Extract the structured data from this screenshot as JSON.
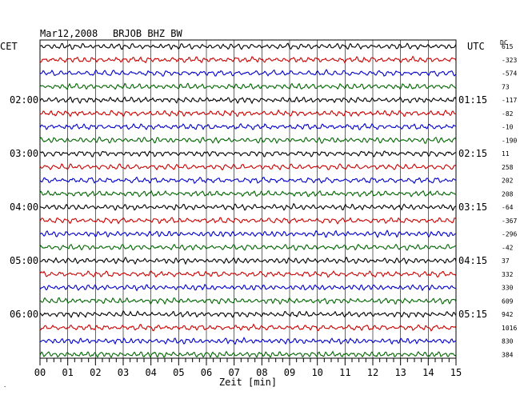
{
  "header": {
    "date": "Mar12,2008",
    "station": "BRJOB BHZ BW",
    "left_tz": "CET",
    "right_tz": "UTC",
    "dc_label": "DC"
  },
  "colors": {
    "cycle": [
      "#000000",
      "#cc0000",
      "#0000cc",
      "#006600"
    ],
    "grid": "#000000"
  },
  "chart_data": {
    "type": "line",
    "title": "Mar12,2008   BRJOB BHZ BW",
    "xlabel": "Zeit [min]",
    "xlim": [
      0,
      15
    ],
    "x_ticks": [
      "00",
      "01",
      "02",
      "03",
      "04",
      "05",
      "06",
      "07",
      "08",
      "09",
      "10",
      "11",
      "12",
      "13",
      "14",
      "15"
    ],
    "grid": true,
    "minutes_per_trace": 15,
    "trace_count": 24,
    "left_time_labels": [
      {
        "trace": 4,
        "label": "02:00"
      },
      {
        "trace": 8,
        "label": "03:00"
      },
      {
        "trace": 12,
        "label": "04:00"
      },
      {
        "trace": 16,
        "label": "05:00"
      },
      {
        "trace": 20,
        "label": "06:00"
      }
    ],
    "right_time_labels": [
      {
        "trace": 4,
        "label": "01:15"
      },
      {
        "trace": 8,
        "label": "02:15"
      },
      {
        "trace": 12,
        "label": "03:15"
      },
      {
        "trace": 16,
        "label": "04:15"
      },
      {
        "trace": 20,
        "label": "05:15"
      }
    ],
    "dc_offsets": [
      "615",
      "-323",
      "-574",
      "73",
      "-117",
      "-82",
      "-10",
      "-190",
      "11",
      "258",
      "202",
      "208",
      "-64",
      "-367",
      "-296",
      "-42",
      "37",
      "332",
      "330",
      "609",
      "942",
      "1016",
      "830",
      "384"
    ]
  }
}
